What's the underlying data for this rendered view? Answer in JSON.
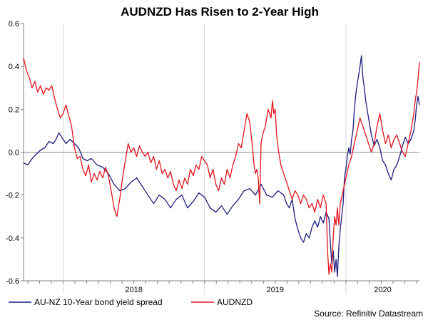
{
  "colors": {
    "au_nz_spread": "#1c1c80",
    "audnzd": "#e3141c",
    "zero_line": "#8c8c8c",
    "grid": "#d9d9d9",
    "axis": "#808080"
  },
  "source": "Source: Refinitiv Datastream",
  "chart_data": {
    "type": "line",
    "title": "AUDNZD Has Risen to 2-Year High",
    "xlabel": "",
    "ylabel": "",
    "ylim": [
      -0.6,
      0.6
    ],
    "xlim": [
      2017.72,
      2020.52
    ],
    "y_ticks": [
      "0.6",
      "0.4",
      "0.2",
      "0.0",
      "-0.2",
      "-0.4",
      "-0.6"
    ],
    "x_ticks": [
      {
        "label": "2018",
        "x": 2018.0
      },
      {
        "label": "2019",
        "x": 2019.0
      },
      {
        "label": "2020",
        "x": 2020.0
      }
    ],
    "grid": "vertical at year boundaries",
    "legend": "bottom",
    "series": [
      {
        "name": "AU-NZ 10-Year bond yield spread",
        "color": "#1c1c80",
        "points": [
          [
            2017.72,
            -0.05
          ],
          [
            2017.75,
            -0.06
          ],
          [
            2017.78,
            -0.03
          ],
          [
            2017.81,
            -0.01
          ],
          [
            2017.84,
            0.01
          ],
          [
            2017.87,
            0.02
          ],
          [
            2017.9,
            0.05
          ],
          [
            2017.93,
            0.04
          ],
          [
            2017.95,
            0.06
          ],
          [
            2017.97,
            0.09
          ],
          [
            2017.99,
            0.07
          ],
          [
            2018.02,
            0.04
          ],
          [
            2018.05,
            0.06
          ],
          [
            2018.08,
            0.04
          ],
          [
            2018.11,
            0.02
          ],
          [
            2018.14,
            -0.03
          ],
          [
            2018.17,
            -0.04
          ],
          [
            2018.2,
            -0.03
          ],
          [
            2018.24,
            -0.06
          ],
          [
            2018.28,
            -0.07
          ],
          [
            2018.32,
            -0.1
          ],
          [
            2018.36,
            -0.15
          ],
          [
            2018.4,
            -0.18
          ],
          [
            2018.44,
            -0.17
          ],
          [
            2018.48,
            -0.14
          ],
          [
            2018.52,
            -0.12
          ],
          [
            2018.56,
            -0.16
          ],
          [
            2018.6,
            -0.2
          ],
          [
            2018.64,
            -0.24
          ],
          [
            2018.68,
            -0.2
          ],
          [
            2018.72,
            -0.22
          ],
          [
            2018.76,
            -0.26
          ],
          [
            2018.8,
            -0.22
          ],
          [
            2018.84,
            -0.2
          ],
          [
            2018.88,
            -0.26
          ],
          [
            2018.92,
            -0.23
          ],
          [
            2018.96,
            -0.19
          ],
          [
            2019.0,
            -0.21
          ],
          [
            2019.04,
            -0.26
          ],
          [
            2019.08,
            -0.28
          ],
          [
            2019.12,
            -0.25
          ],
          [
            2019.16,
            -0.29
          ],
          [
            2019.2,
            -0.25
          ],
          [
            2019.24,
            -0.22
          ],
          [
            2019.28,
            -0.18
          ],
          [
            2019.32,
            -0.17
          ],
          [
            2019.36,
            -0.2
          ],
          [
            2019.4,
            -0.15
          ],
          [
            2019.44,
            -0.2
          ],
          [
            2019.48,
            -0.21
          ],
          [
            2019.52,
            -0.18
          ],
          [
            2019.56,
            -0.2
          ],
          [
            2019.58,
            -0.24
          ],
          [
            2019.6,
            -0.26
          ],
          [
            2019.62,
            -0.22
          ],
          [
            2019.64,
            -0.31
          ],
          [
            2019.66,
            -0.36
          ],
          [
            2019.68,
            -0.4
          ],
          [
            2019.7,
            -0.42
          ],
          [
            2019.72,
            -0.38
          ],
          [
            2019.74,
            -0.4
          ],
          [
            2019.76,
            -0.35
          ],
          [
            2019.78,
            -0.32
          ],
          [
            2019.8,
            -0.35
          ],
          [
            2019.82,
            -0.3
          ],
          [
            2019.84,
            -0.33
          ],
          [
            2019.86,
            -0.28
          ],
          [
            2019.88,
            -0.31
          ],
          [
            2019.89,
            -0.42
          ],
          [
            2019.9,
            -0.52
          ],
          [
            2019.91,
            -0.46
          ],
          [
            2019.92,
            -0.56
          ],
          [
            2019.93,
            -0.5
          ],
          [
            2019.94,
            -0.58
          ],
          [
            2019.95,
            -0.44
          ],
          [
            2019.96,
            -0.36
          ],
          [
            2019.98,
            -0.24
          ],
          [
            2019.99,
            -0.12
          ],
          [
            2020.0,
            -0.08
          ],
          [
            2020.01,
            -0.02
          ],
          [
            2020.02,
            0.02
          ],
          [
            2020.03,
            -0.01
          ],
          [
            2020.04,
            0.06
          ],
          [
            2020.05,
            0.1
          ],
          [
            2020.06,
            0.2
          ],
          [
            2020.07,
            0.27
          ],
          [
            2020.08,
            0.32
          ],
          [
            2020.09,
            0.36
          ],
          [
            2020.1,
            0.4
          ],
          [
            2020.11,
            0.45
          ],
          [
            2020.12,
            0.35
          ],
          [
            2020.13,
            0.3
          ],
          [
            2020.14,
            0.24
          ],
          [
            2020.16,
            0.16
          ],
          [
            2020.18,
            0.08
          ],
          [
            2020.2,
            0.03
          ],
          [
            2020.22,
            0.06
          ],
          [
            2020.24,
            0.02
          ],
          [
            2020.26,
            -0.04
          ],
          [
            2020.28,
            -0.06
          ],
          [
            2020.3,
            -0.1
          ],
          [
            2020.32,
            -0.13
          ],
          [
            2020.34,
            -0.08
          ],
          [
            2020.36,
            -0.06
          ],
          [
            2020.38,
            -0.02
          ],
          [
            2020.4,
            0.03
          ],
          [
            2020.42,
            0.07
          ],
          [
            2020.44,
            0.04
          ],
          [
            2020.46,
            0.06
          ],
          [
            2020.48,
            0.1
          ],
          [
            2020.49,
            0.15
          ],
          [
            2020.5,
            0.22
          ],
          [
            2020.51,
            0.26
          ],
          [
            2020.52,
            0.22
          ]
        ]
      },
      {
        "name": "AUDNZD",
        "color": "#e3141c",
        "points": [
          [
            2017.72,
            0.44
          ],
          [
            2017.74,
            0.38
          ],
          [
            2017.76,
            0.35
          ],
          [
            2017.78,
            0.3
          ],
          [
            2017.8,
            0.33
          ],
          [
            2017.82,
            0.28
          ],
          [
            2017.84,
            0.31
          ],
          [
            2017.86,
            0.27
          ],
          [
            2017.88,
            0.3
          ],
          [
            2017.9,
            0.29
          ],
          [
            2017.92,
            0.31
          ],
          [
            2017.94,
            0.25
          ],
          [
            2017.96,
            0.2
          ],
          [
            2017.98,
            0.16
          ],
          [
            2018.0,
            0.18
          ],
          [
            2018.02,
            0.22
          ],
          [
            2018.04,
            0.17
          ],
          [
            2018.06,
            0.12
          ],
          [
            2018.08,
            0.02
          ],
          [
            2018.1,
            -0.03
          ],
          [
            2018.12,
            -0.02
          ],
          [
            2018.14,
            -0.08
          ],
          [
            2018.16,
            -0.11
          ],
          [
            2018.18,
            -0.06
          ],
          [
            2018.2,
            -0.14
          ],
          [
            2018.22,
            -0.1
          ],
          [
            2018.24,
            -0.13
          ],
          [
            2018.26,
            -0.09
          ],
          [
            2018.28,
            -0.12
          ],
          [
            2018.3,
            -0.07
          ],
          [
            2018.32,
            -0.11
          ],
          [
            2018.34,
            -0.18
          ],
          [
            2018.36,
            -0.26
          ],
          [
            2018.38,
            -0.3
          ],
          [
            2018.4,
            -0.22
          ],
          [
            2018.42,
            -0.12
          ],
          [
            2018.44,
            -0.04
          ],
          [
            2018.46,
            0.04
          ],
          [
            2018.48,
            0.0
          ],
          [
            2018.5,
            0.02
          ],
          [
            2018.52,
            -0.02
          ],
          [
            2018.54,
            0.03
          ],
          [
            2018.56,
            0.0
          ],
          [
            2018.58,
            -0.02
          ],
          [
            2018.6,
            0.0
          ],
          [
            2018.62,
            -0.05
          ],
          [
            2018.64,
            -0.02
          ],
          [
            2018.66,
            -0.08
          ],
          [
            2018.68,
            -0.04
          ],
          [
            2018.7,
            -0.1
          ],
          [
            2018.72,
            -0.08
          ],
          [
            2018.74,
            -0.12
          ],
          [
            2018.76,
            -0.09
          ],
          [
            2018.78,
            -0.15
          ],
          [
            2018.8,
            -0.18
          ],
          [
            2018.82,
            -0.13
          ],
          [
            2018.84,
            -0.17
          ],
          [
            2018.86,
            -0.12
          ],
          [
            2018.88,
            -0.15
          ],
          [
            2018.9,
            -0.08
          ],
          [
            2018.92,
            -0.11
          ],
          [
            2018.94,
            -0.06
          ],
          [
            2018.96,
            -0.08
          ],
          [
            2018.98,
            -0.02
          ],
          [
            2019.0,
            -0.04
          ],
          [
            2019.02,
            -0.06
          ],
          [
            2019.04,
            -0.12
          ],
          [
            2019.06,
            -0.08
          ],
          [
            2019.08,
            -0.15
          ],
          [
            2019.1,
            -0.18
          ],
          [
            2019.12,
            -0.12
          ],
          [
            2019.14,
            -0.15
          ],
          [
            2019.16,
            -0.08
          ],
          [
            2019.18,
            -0.12
          ],
          [
            2019.2,
            -0.06
          ],
          [
            2019.22,
            -0.02
          ],
          [
            2019.24,
            0.04
          ],
          [
            2019.26,
            0.02
          ],
          [
            2019.28,
            0.1
          ],
          [
            2019.3,
            0.18
          ],
          [
            2019.32,
            0.14
          ],
          [
            2019.33,
            0.08
          ],
          [
            2019.34,
            0.02
          ],
          [
            2019.35,
            -0.06
          ],
          [
            2019.36,
            -0.1
          ],
          [
            2019.37,
            -0.08
          ],
          [
            2019.38,
            -0.12
          ],
          [
            2019.39,
            -0.24
          ],
          [
            2019.4,
            0.04
          ],
          [
            2019.41,
            0.08
          ],
          [
            2019.43,
            0.12
          ],
          [
            2019.45,
            0.2
          ],
          [
            2019.47,
            0.16
          ],
          [
            2019.48,
            0.24
          ],
          [
            2019.49,
            0.18
          ],
          [
            2019.5,
            0.2
          ],
          [
            2019.51,
            0.08
          ],
          [
            2019.52,
            0.02
          ],
          [
            2019.54,
            -0.06
          ],
          [
            2019.56,
            -0.1
          ],
          [
            2019.58,
            -0.14
          ],
          [
            2019.6,
            -0.18
          ],
          [
            2019.62,
            -0.22
          ],
          [
            2019.64,
            -0.18
          ],
          [
            2019.66,
            -0.2
          ],
          [
            2019.68,
            -0.24
          ],
          [
            2019.7,
            -0.2
          ],
          [
            2019.72,
            -0.22
          ],
          [
            2019.74,
            -0.26
          ],
          [
            2019.76,
            -0.24
          ],
          [
            2019.78,
            -0.28
          ],
          [
            2019.8,
            -0.22
          ],
          [
            2019.82,
            -0.26
          ],
          [
            2019.84,
            -0.2
          ],
          [
            2019.86,
            -0.24
          ],
          [
            2019.87,
            -0.46
          ],
          [
            2019.88,
            -0.57
          ],
          [
            2019.89,
            -0.52
          ],
          [
            2019.9,
            -0.56
          ],
          [
            2019.91,
            -0.4
          ],
          [
            2019.92,
            -0.3
          ],
          [
            2019.93,
            -0.34
          ],
          [
            2019.94,
            -0.26
          ],
          [
            2019.95,
            -0.34
          ],
          [
            2019.96,
            -0.24
          ],
          [
            2019.98,
            -0.18
          ],
          [
            2020.0,
            -0.12
          ],
          [
            2020.02,
            -0.06
          ],
          [
            2020.04,
            -0.02
          ],
          [
            2020.06,
            0.04
          ],
          [
            2020.08,
            0.1
          ],
          [
            2020.1,
            0.16
          ],
          [
            2020.12,
            0.12
          ],
          [
            2020.14,
            0.08
          ],
          [
            2020.16,
            0.04
          ],
          [
            2020.18,
            0.0
          ],
          [
            2020.2,
            0.04
          ],
          [
            2020.22,
            0.12
          ],
          [
            2020.24,
            0.18
          ],
          [
            2020.26,
            0.1
          ],
          [
            2020.28,
            0.04
          ],
          [
            2020.3,
            0.08
          ],
          [
            2020.32,
            0.02
          ],
          [
            2020.34,
            0.06
          ],
          [
            2020.36,
            0.08
          ],
          [
            2020.38,
            0.04
          ],
          [
            2020.4,
            0.0
          ],
          [
            2020.42,
            -0.02
          ],
          [
            2020.44,
            0.04
          ],
          [
            2020.46,
            0.1
          ],
          [
            2020.48,
            0.18
          ],
          [
            2020.49,
            0.24
          ],
          [
            2020.5,
            0.28
          ],
          [
            2020.51,
            0.34
          ],
          [
            2020.52,
            0.42
          ]
        ]
      }
    ]
  }
}
